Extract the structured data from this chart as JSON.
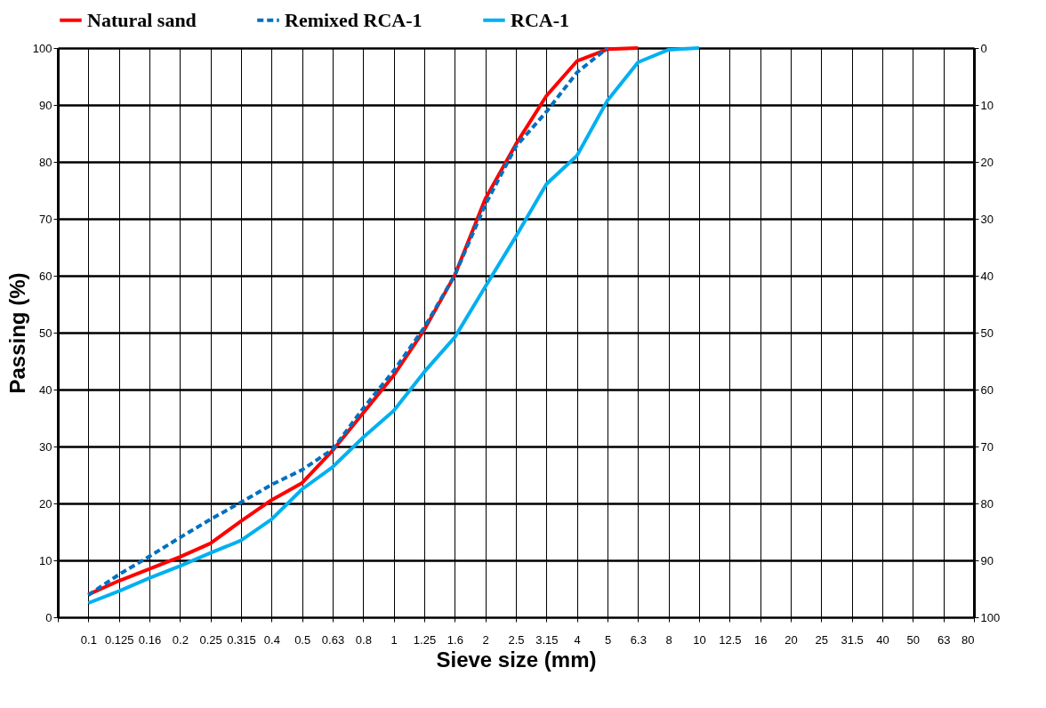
{
  "chart_data": {
    "type": "line",
    "xlabel": "Sieve size (mm)",
    "ylabel": "Passing (%)",
    "categories": [
      null,
      "0.1",
      "0.125",
      "0.16",
      "0.2",
      "0.25",
      "0.315",
      "0.4",
      "0.5",
      "0.63",
      "0.8",
      "1",
      "1.25",
      "1.6",
      "2",
      "2.5",
      "3.15",
      "4",
      "5",
      "6.3",
      "8",
      "10",
      "12.5",
      "16",
      "20",
      "25",
      "31.5",
      "40",
      "50",
      "63",
      "80"
    ],
    "series": [
      {
        "name": "Natural sand",
        "color": "#ff0000",
        "line_style": "solid",
        "values": [
          null,
          4.0,
          6.4,
          8.5,
          10.6,
          13.0,
          16.9,
          20.6,
          23.6,
          29.3,
          35.9,
          42.5,
          50.5,
          60.1,
          73.5,
          83.1,
          91.6,
          97.7,
          99.8,
          100,
          null,
          null,
          null,
          null,
          null,
          null,
          null,
          null,
          null,
          null,
          null
        ]
      },
      {
        "name": "Remixed RCA-1",
        "color": "#0070c0",
        "line_style": "dashed",
        "values": [
          null,
          3.9,
          7.5,
          10.7,
          14.0,
          17.2,
          20.2,
          23.3,
          25.9,
          29.5,
          36.7,
          43.3,
          50.9,
          60.1,
          72.5,
          82.7,
          88.8,
          95.7,
          100,
          null,
          null,
          null,
          null,
          null,
          null,
          null,
          null,
          null,
          null,
          null,
          null
        ]
      },
      {
        "name": "RCA-1",
        "color": "#00b0f0",
        "line_style": "solid",
        "values": [
          null,
          2.5,
          4.6,
          6.9,
          9.0,
          11.3,
          13.5,
          17.2,
          22.5,
          26.4,
          31.6,
          36.3,
          43.1,
          49.2,
          58.1,
          66.9,
          76.1,
          81.1,
          90.8,
          97.5,
          99.7,
          100,
          null,
          null,
          null,
          null,
          null,
          null,
          null,
          null,
          null
        ]
      }
    ],
    "ylim": [
      0,
      100
    ],
    "yticks": [
      0,
      10,
      20,
      30,
      40,
      50,
      60,
      70,
      80,
      90,
      100
    ],
    "y2lim": [
      100,
      0
    ],
    "y2ticks": [
      0,
      10,
      20,
      30,
      40,
      50,
      60,
      70,
      80,
      90,
      100
    ],
    "grid": true,
    "legend": "top",
    "marker": "none"
  }
}
